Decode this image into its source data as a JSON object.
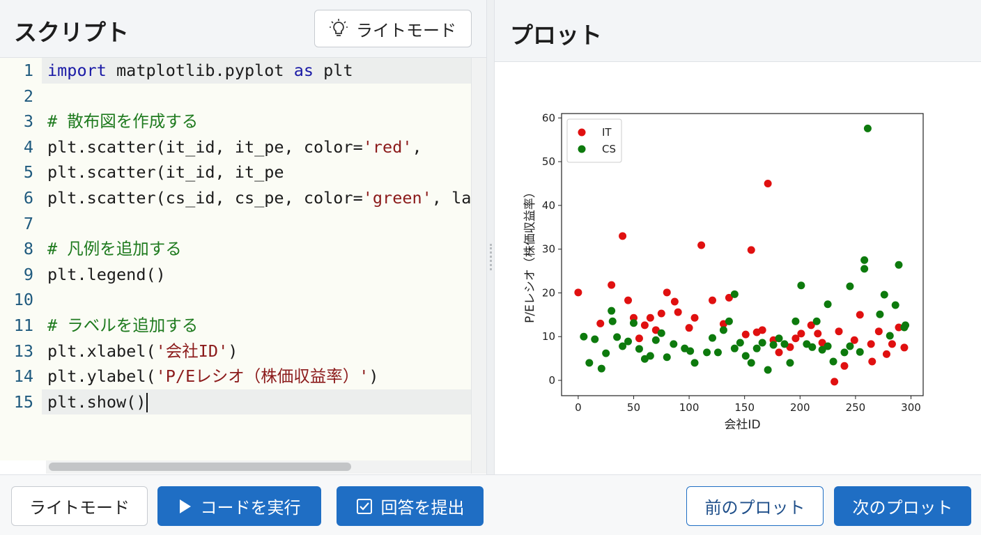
{
  "header": {
    "script_title": "スクリプト",
    "theme_button": "ライトモード",
    "plot_title": "プロット"
  },
  "editor": {
    "lines": [
      {
        "number": 1,
        "tokens": [
          {
            "text": "import",
            "color": "#1a1aa6"
          },
          {
            "text": " matplotlib.pyplot ",
            "color": "#1b1b1b"
          },
          {
            "text": "as",
            "color": "#1a1aa6"
          },
          {
            "text": " plt",
            "color": "#1b1b1b"
          }
        ]
      },
      {
        "number": 2,
        "tokens": []
      },
      {
        "number": 3,
        "tokens": [
          {
            "text": "# 散布図を作成する",
            "color": "#1e7a1e"
          }
        ]
      },
      {
        "number": 4,
        "tokens": [
          {
            "text": "plt.scatter(it_id, it_pe, color=",
            "color": "#1b1b1b"
          },
          {
            "text": "'red'",
            "color": "#8b1a1a"
          },
          {
            "text": ",",
            "color": "#1b1b1b"
          }
        ]
      },
      {
        "number": 5,
        "tokens": [
          {
            "text": "plt.scatter(it_id, it_pe",
            "color": "#1b1b1b"
          }
        ]
      },
      {
        "number": 6,
        "tokens": [
          {
            "text": "plt.scatter(cs_id, cs_pe, color=",
            "color": "#1b1b1b"
          },
          {
            "text": "'green'",
            "color": "#8b1a1a"
          },
          {
            "text": ", la",
            "color": "#1b1b1b"
          }
        ]
      },
      {
        "number": 7,
        "tokens": []
      },
      {
        "number": 8,
        "tokens": [
          {
            "text": "# 凡例を追加する",
            "color": "#1e7a1e"
          }
        ]
      },
      {
        "number": 9,
        "tokens": [
          {
            "text": "plt.legend()",
            "color": "#1b1b1b"
          }
        ]
      },
      {
        "number": 10,
        "tokens": []
      },
      {
        "number": 11,
        "tokens": [
          {
            "text": "# ラベルを追加する",
            "color": "#1e7a1e"
          }
        ]
      },
      {
        "number": 13,
        "tokens": [
          {
            "text": "plt.xlabel(",
            "color": "#1b1b1b"
          },
          {
            "text": "'会社ID'",
            "color": "#8b1a1a"
          },
          {
            "text": ")",
            "color": "#1b1b1b"
          }
        ]
      },
      {
        "number": 14,
        "tokens": [
          {
            "text": "plt.ylabel(",
            "color": "#1b1b1b"
          },
          {
            "text": "'P/Eレシオ（株価収益率）'",
            "color": "#8b1a1a"
          },
          {
            "text": ")",
            "color": "#1b1b1b"
          }
        ]
      },
      {
        "number": 15,
        "tokens": [
          {
            "text": "plt.show()",
            "color": "#1b1b1b"
          }
        ]
      }
    ]
  },
  "chart_data": {
    "type": "scatter",
    "xlabel": "会社ID",
    "ylabel": "P/Eレシオ（株価収益率）",
    "xlim": [
      -15,
      311
    ],
    "ylim": [
      -3.5,
      61
    ],
    "xticks": [
      0,
      50,
      100,
      150,
      200,
      250,
      300
    ],
    "yticks": [
      0,
      10,
      20,
      30,
      40,
      50,
      60
    ],
    "legend": "upper left",
    "series": [
      {
        "name": "IT",
        "color": "#e01010",
        "x": [
          0,
          20,
          30,
          40,
          45,
          50,
          55,
          60,
          65,
          70,
          75,
          80,
          87,
          90,
          100,
          105,
          111,
          121,
          131,
          136,
          151,
          156,
          161,
          166,
          171,
          176,
          181,
          191,
          196,
          201,
          210,
          216,
          220,
          231,
          235,
          240,
          249,
          254,
          264,
          265,
          271,
          278,
          283,
          289,
          294
        ],
        "values": [
          20.1,
          13,
          21.8,
          33,
          18.3,
          14.3,
          9.6,
          12.6,
          14.3,
          11.5,
          15.3,
          20.1,
          18,
          15.6,
          12,
          14.3,
          30.9,
          18.3,
          12.9,
          18.9,
          10.5,
          29.8,
          11,
          11.5,
          45,
          9.2,
          6.4,
          7.6,
          9.6,
          10.7,
          12.6,
          10.7,
          8.6,
          -0.3,
          11.2,
          3.3,
          9.2,
          15,
          8.3,
          4.3,
          11.2,
          6,
          8.3,
          12.1,
          7.5
        ]
      },
      {
        "name": "CS",
        "color": "#0d7a0d",
        "x": [
          5,
          10,
          15,
          21,
          25,
          30,
          31,
          35,
          40,
          45,
          50,
          55,
          60,
          65,
          70,
          75,
          80,
          86,
          96,
          101,
          105,
          116,
          121,
          126,
          131,
          136,
          141,
          141,
          146,
          151,
          156,
          161,
          166,
          171,
          176,
          181,
          186,
          191,
          196,
          201,
          206,
          211,
          215,
          220,
          225,
          225,
          230,
          240,
          245,
          245,
          254,
          258,
          258,
          261,
          272,
          276,
          281,
          286,
          289,
          294,
          295
        ],
        "values": [
          10,
          4,
          9.4,
          2.7,
          6.2,
          15.9,
          13.5,
          9.9,
          7.8,
          8.9,
          13.1,
          7.2,
          4.9,
          5.6,
          9.2,
          10.8,
          5.3,
          8.3,
          7.3,
          6.7,
          4,
          6.4,
          9.7,
          6.4,
          11.5,
          13.5,
          19.7,
          7.3,
          8.6,
          5.6,
          4,
          7.3,
          8.6,
          2.4,
          8.1,
          9.6,
          8.3,
          4,
          13.5,
          21.7,
          8.3,
          7.6,
          13.5,
          7,
          17.4,
          7.8,
          4.3,
          6.4,
          7.8,
          21.5,
          6.5,
          27.5,
          25.5,
          57.6,
          15.1,
          19.6,
          10.2,
          17.2,
          26.4,
          12.1,
          12.6
        ]
      }
    ]
  },
  "footer": {
    "buttons": [
      "ライトモード",
      "コードを実行",
      "回答を提出",
      "前のプロット",
      "次のプロット"
    ]
  }
}
